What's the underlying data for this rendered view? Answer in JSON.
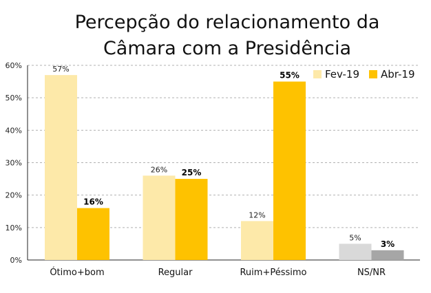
{
  "title_lines": [
    "Percepção do relacionamento da",
    "Câmara com a Presidência"
  ],
  "chart_data": {
    "type": "bar",
    "title": "Percepção do relacionamento da Câmara com a Presidência",
    "categories": [
      "Ótimo+bom",
      "Regular",
      "Ruim+Péssimo",
      "NS/NR"
    ],
    "series": [
      {
        "name": "Fev-19",
        "color": "#fde9a9",
        "values": [
          57,
          26,
          12,
          5
        ],
        "labels": [
          "57%",
          "26%",
          "12%",
          "5%"
        ]
      },
      {
        "name": "Abr-19",
        "color": "#fec200",
        "values": [
          16,
          25,
          55,
          3
        ],
        "labels": [
          "16%",
          "25%",
          "55%",
          "3%"
        ]
      }
    ],
    "category_overrides": [
      null,
      null,
      null,
      {
        "colors": [
          "#d9d9d9",
          "#a6a6a6"
        ]
      }
    ],
    "ylim": [
      0,
      60
    ],
    "yticks": [
      0,
      10,
      20,
      30,
      40,
      50,
      60
    ],
    "ytick_labels": [
      "0%",
      "10%",
      "20%",
      "30%",
      "40%",
      "50%",
      "60%"
    ],
    "grid": true,
    "legend": "top-right"
  }
}
